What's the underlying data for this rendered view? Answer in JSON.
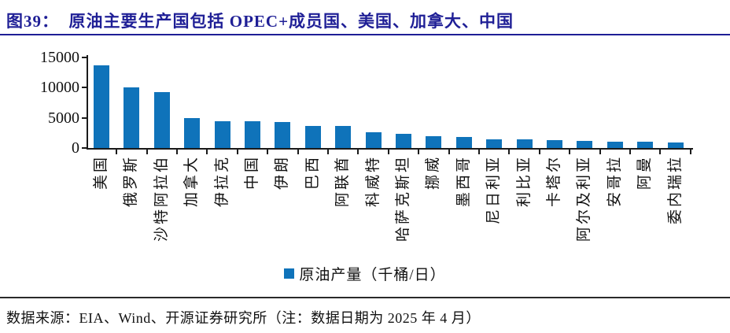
{
  "title": {
    "text": "图39：  原油主要生产国包括 OPEC+成员国、美国、加拿大、中国"
  },
  "legend": {
    "label": "原油产量（千桶/日）"
  },
  "footer": {
    "text": "数据来源：EIA、Wind、开源证券研究所（注：数据日期为 2025 年 4 月）"
  },
  "colors": {
    "bar": "#0F73BA",
    "title": "#1F1F96",
    "axis": "#1A1A1A"
  },
  "chart_data": {
    "type": "bar",
    "title": "原油主要生产国包括 OPEC+成员国、美国、加拿大、中国",
    "categories": [
      "美国",
      "俄罗斯",
      "沙特阿拉伯",
      "加拿大",
      "伊拉克",
      "中国",
      "伊朗",
      "巴西",
      "阿联酋",
      "科威特",
      "哈萨克斯坦",
      "挪威",
      "墨西哥",
      "尼日利亚",
      "利比亚",
      "卡塔尔",
      "阿尔及利亚",
      "安哥拉",
      "阿曼",
      "委内瑞拉"
    ],
    "values": [
      13700,
      10000,
      9300,
      4950,
      4450,
      4400,
      4300,
      3700,
      3650,
      2550,
      2300,
      1900,
      1850,
      1450,
      1400,
      1250,
      1150,
      1050,
      1000,
      950
    ],
    "series_name": "原油产量（千桶/日）",
    "xlabel": "",
    "ylabel": "",
    "ylim": [
      0,
      15000
    ],
    "yticks": [
      0,
      5000,
      10000,
      15000
    ],
    "legend_position": "bottom-center",
    "grid": false
  }
}
